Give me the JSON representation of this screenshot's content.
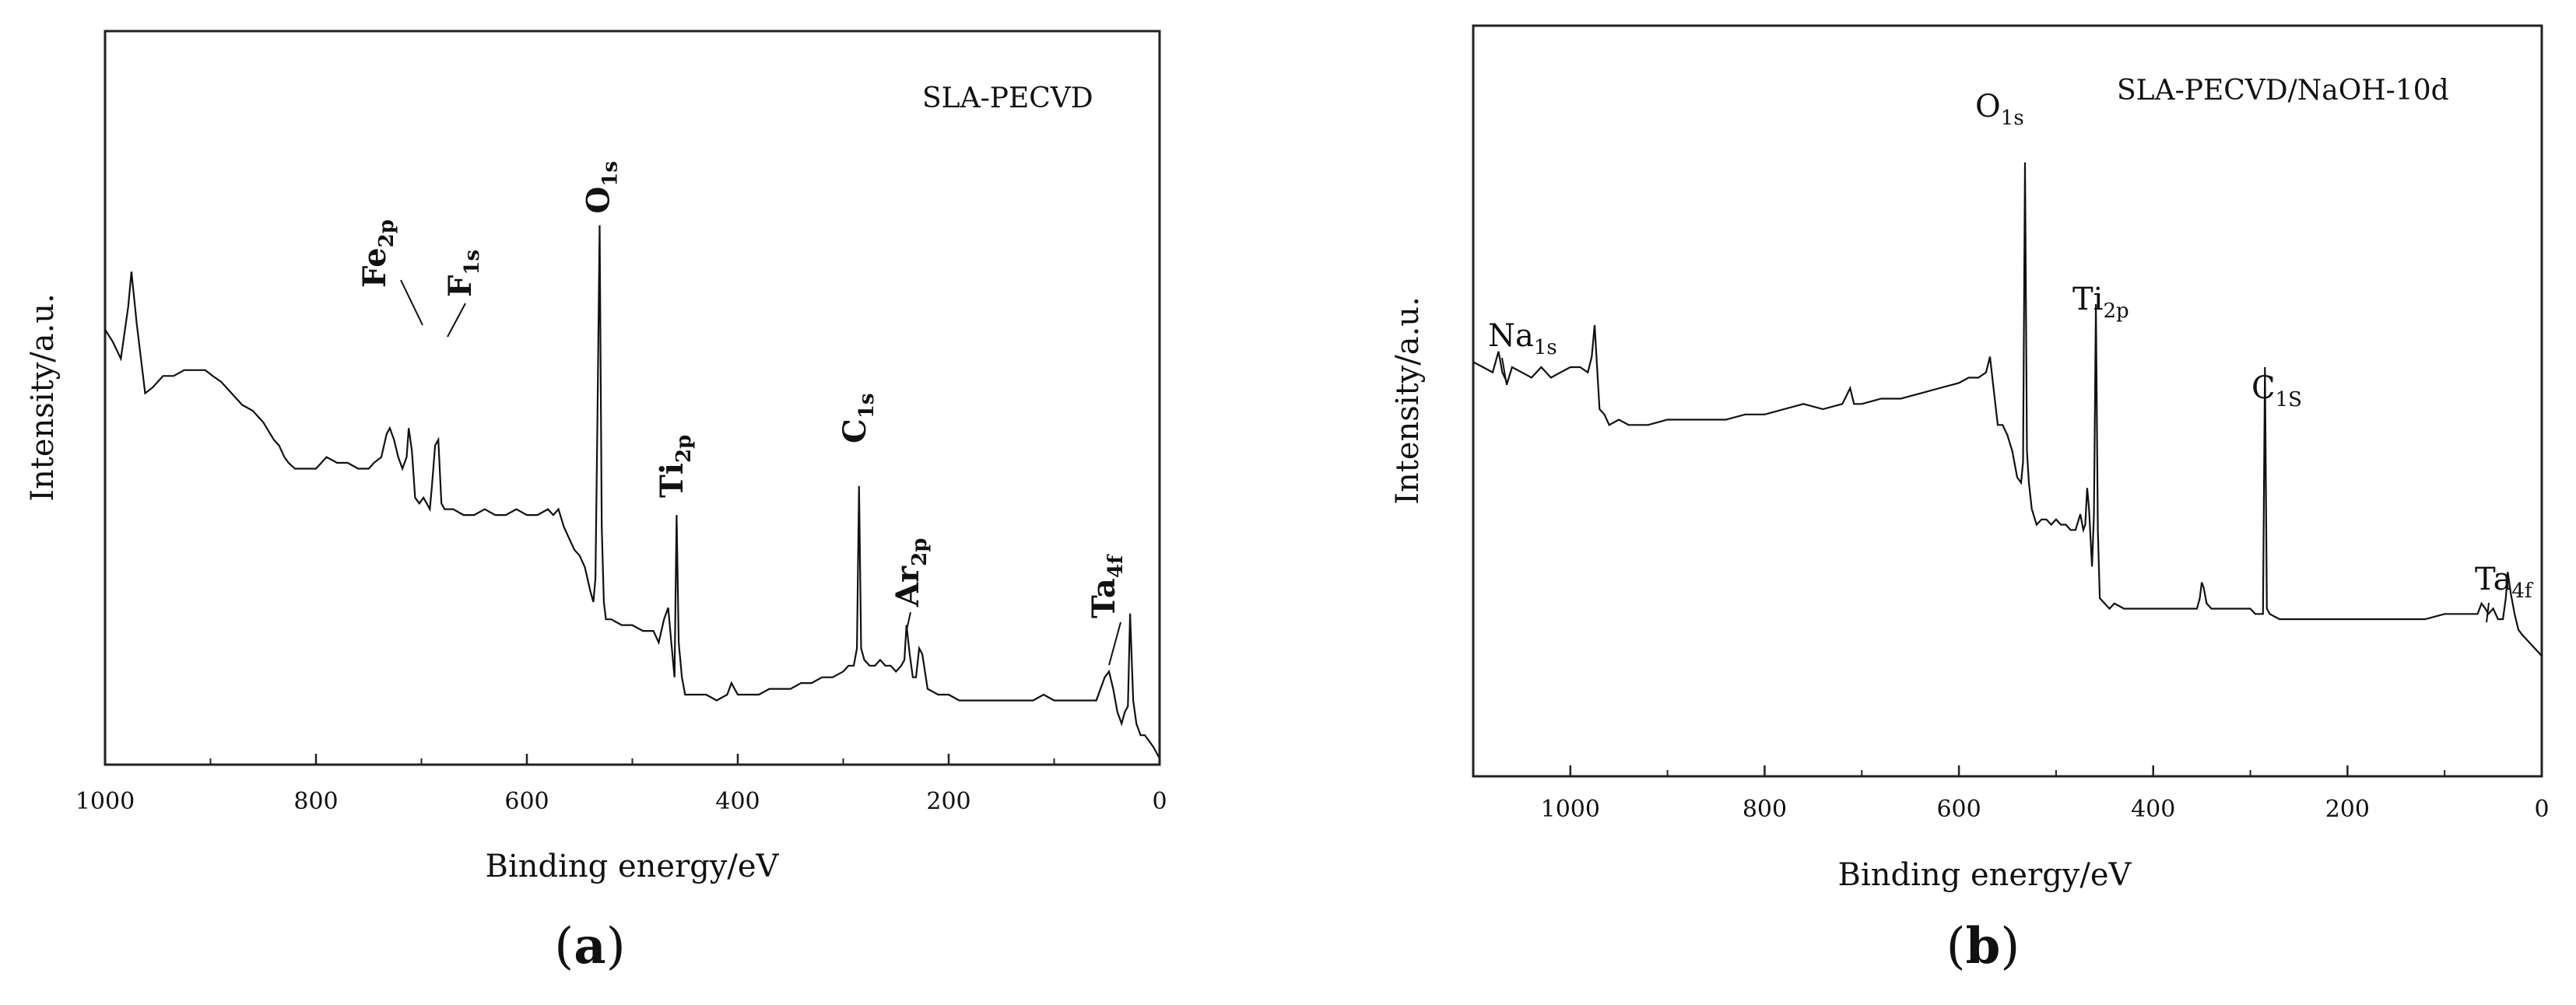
{
  "chart_data": [
    {
      "type": "line",
      "panel": "(a)",
      "panel_letter": "a",
      "name_label": "SLA-PECVD",
      "xlabel": "Binding energy/eV",
      "ylabel": "Intensity/a.u.",
      "xlim": [
        1000,
        0
      ],
      "ylim": [
        0,
        100
      ],
      "x_reversed": true,
      "y_ticks_shown": false,
      "grid": false,
      "x_ticks": [
        1000,
        800,
        600,
        400,
        200,
        0
      ],
      "peak_labels_bold": true,
      "series": [
        {
          "x": [
            1000,
            993,
            985,
            978,
            975,
            970,
            962,
            955,
            945,
            935,
            925,
            915,
            905,
            898,
            890,
            880,
            870,
            860,
            850,
            840,
            835,
            830,
            826,
            820,
            810,
            800,
            790,
            780,
            770,
            760,
            750,
            745,
            738,
            733,
            730,
            726,
            722,
            718,
            714,
            712,
            709,
            706,
            702,
            698,
            695,
            692,
            690,
            687,
            684,
            681,
            678,
            670,
            660,
            650,
            640,
            630,
            620,
            610,
            600,
            590,
            580,
            575,
            570,
            565,
            560,
            555,
            550,
            545,
            540,
            537,
            535,
            533,
            531,
            529,
            527,
            525,
            520,
            510,
            500,
            490,
            480,
            475,
            470,
            466,
            463,
            460,
            458,
            456,
            453,
            450,
            440,
            430,
            420,
            410,
            406,
            403,
            400,
            390,
            380,
            370,
            360,
            350,
            340,
            330,
            320,
            310,
            300,
            295,
            290,
            287,
            285,
            283,
            280,
            275,
            270,
            265,
            260,
            255,
            250,
            245,
            242,
            240,
            237,
            234,
            231,
            228,
            225,
            220,
            210,
            200,
            190,
            180,
            170,
            160,
            150,
            140,
            130,
            120,
            110,
            100,
            90,
            80,
            70,
            60,
            56,
            52,
            48,
            44,
            40,
            36,
            33,
            30,
            28,
            25,
            22,
            18,
            14,
            10,
            6,
            3,
            0
          ],
          "y": [
            74,
            72,
            69,
            78,
            84,
            75,
            63,
            64,
            66,
            66,
            67,
            67,
            67,
            66,
            65,
            63,
            61,
            60,
            58,
            55,
            54,
            52,
            51,
            50,
            50,
            50,
            52,
            51,
            51,
            50,
            50,
            51,
            52,
            56,
            57,
            55,
            52,
            50,
            52,
            57,
            53,
            45,
            44,
            45,
            44,
            43,
            47,
            54,
            55,
            44,
            43,
            43,
            42,
            42,
            43,
            42,
            42,
            43,
            42,
            42,
            43,
            42,
            43,
            40,
            38,
            36,
            35,
            33,
            29,
            27,
            31,
            60,
            92,
            40,
            27,
            24,
            24,
            23,
            23,
            22,
            22,
            20,
            24,
            26,
            20,
            14,
            42,
            20,
            14,
            11,
            11,
            11,
            10,
            11,
            13,
            12,
            11,
            11,
            11,
            12,
            12,
            12,
            13,
            13,
            14,
            14,
            15,
            16,
            16,
            19,
            47,
            19,
            17,
            16,
            16,
            17,
            16,
            16,
            15,
            16,
            17,
            23,
            18,
            14,
            14,
            19,
            18,
            12,
            11,
            11,
            10,
            10,
            10,
            10,
            10,
            10,
            10,
            10,
            11,
            10,
            10,
            10,
            10,
            10,
            12,
            14,
            15,
            12,
            8,
            6,
            8,
            9,
            25,
            10,
            6,
            4,
            4,
            3,
            2,
            1,
            0
          ]
        }
      ],
      "peaks": [
        {
          "element": "O",
          "sub": "1s",
          "x": 531
        },
        {
          "element": "Fe",
          "sub": "2p",
          "x": 712
        },
        {
          "element": "F",
          "sub": "1s",
          "x": 687
        },
        {
          "element": "Ti",
          "sub": "2p",
          "x": 458
        },
        {
          "element": "C",
          "sub": "1s",
          "x": 285
        },
        {
          "element": "Ar",
          "sub": "2p",
          "x": 242
        },
        {
          "element": "Ta",
          "sub": "4f",
          "x": 26
        }
      ]
    },
    {
      "type": "line",
      "panel": "(b)",
      "panel_letter": "b",
      "name_label": "SLA-PECVD/NaOH-10d",
      "xlabel": "Binding energy/eV",
      "ylabel": "Intensity/a.u.",
      "xlim": [
        1100,
        0
      ],
      "ylim": [
        0,
        100
      ],
      "x_reversed": true,
      "y_ticks_shown": false,
      "grid": false,
      "x_ticks": [
        1000,
        800,
        600,
        400,
        200,
        0
      ],
      "peak_labels_bold": false,
      "series": [
        {
          "x": [
            1100,
            1090,
            1080,
            1074,
            1070,
            1065,
            1060,
            1050,
            1040,
            1030,
            1020,
            1010,
            1000,
            990,
            982,
            978,
            975,
            970,
            965,
            960,
            950,
            940,
            930,
            920,
            900,
            880,
            860,
            840,
            820,
            800,
            780,
            760,
            740,
            720,
            712,
            708,
            700,
            680,
            660,
            640,
            620,
            600,
            590,
            580,
            572,
            568,
            565,
            560,
            555,
            550,
            545,
            540,
            536,
            534,
            532,
            530,
            528,
            525,
            520,
            515,
            510,
            505,
            500,
            495,
            490,
            485,
            480,
            475,
            472,
            470,
            468,
            466,
            463,
            461,
            459,
            457,
            455,
            450,
            445,
            440,
            430,
            420,
            410,
            400,
            390,
            380,
            370,
            360,
            355,
            352,
            350,
            348,
            345,
            340,
            330,
            320,
            310,
            300,
            295,
            292,
            289,
            287,
            285,
            283,
            280,
            270,
            260,
            250,
            240,
            220,
            200,
            180,
            160,
            140,
            120,
            100,
            80,
            70,
            66,
            62,
            58,
            55,
            50,
            45,
            40,
            37,
            35,
            32,
            28,
            24,
            20,
            15,
            10,
            5,
            0
          ],
          "y": [
            57,
            56,
            55,
            59,
            55,
            53,
            56,
            55,
            54,
            56,
            54,
            55,
            56,
            56,
            55,
            58,
            64,
            48,
            47,
            45,
            46,
            45,
            45,
            45,
            46,
            46,
            46,
            46,
            47,
            47,
            48,
            49,
            48,
            49,
            52,
            49,
            49,
            50,
            50,
            51,
            52,
            53,
            54,
            54,
            55,
            58,
            53,
            45,
            45,
            43,
            40,
            35,
            34,
            38,
            95,
            40,
            34,
            29,
            26,
            27,
            27,
            26,
            27,
            26,
            26,
            25,
            25,
            28,
            25,
            26,
            33,
            29,
            18,
            28,
            68,
            25,
            12,
            11,
            10,
            11,
            10,
            10,
            10,
            10,
            10,
            10,
            10,
            10,
            10,
            12,
            15,
            14,
            11,
            10,
            10,
            10,
            10,
            10,
            9,
            9,
            9,
            9,
            56,
            10,
            9,
            8,
            8,
            8,
            8,
            8,
            8,
            8,
            8,
            8,
            8,
            9,
            9,
            9,
            9,
            11,
            10,
            9,
            10,
            8,
            8,
            12,
            17,
            13,
            9,
            6,
            5,
            4,
            3,
            2,
            1
          ]
        }
      ],
      "peaks": [
        {
          "element": "O",
          "sub": "1s",
          "x": 532
        },
        {
          "element": "Na",
          "sub": "1s",
          "x": 1074
        },
        {
          "element": "Ti",
          "sub": "2p",
          "x": 459
        },
        {
          "element": "C",
          "sub": "1S",
          "x": 285
        },
        {
          "element": "Ta",
          "sub": "4f",
          "x": 36
        }
      ]
    }
  ]
}
